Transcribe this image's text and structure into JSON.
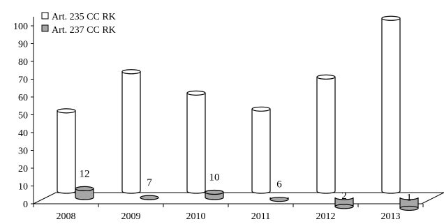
{
  "chart_data": {
    "type": "bar",
    "categories": [
      "2008",
      "2009",
      "2010",
      "2011",
      "2012",
      "2013"
    ],
    "series": [
      {
        "name": "Art. 235 CC RK",
        "values": [
          53,
          75,
          63,
          54,
          72,
          105
        ],
        "color": "#ffffff"
      },
      {
        "name": "Art. 237 CC RK",
        "values": [
          12,
          7,
          10,
          6,
          2,
          1
        ],
        "color": "#a6a6a6"
      }
    ],
    "data_labels": [
      "12",
      "7",
      "10",
      "6",
      "2",
      "1"
    ],
    "y_ticks": [
      "0",
      "10",
      "20",
      "30",
      "40",
      "50",
      "60",
      "70",
      "80",
      "90",
      "100"
    ],
    "ylim": [
      0,
      105
    ],
    "legend_position": "top-left",
    "style": "3d-cylinder"
  }
}
